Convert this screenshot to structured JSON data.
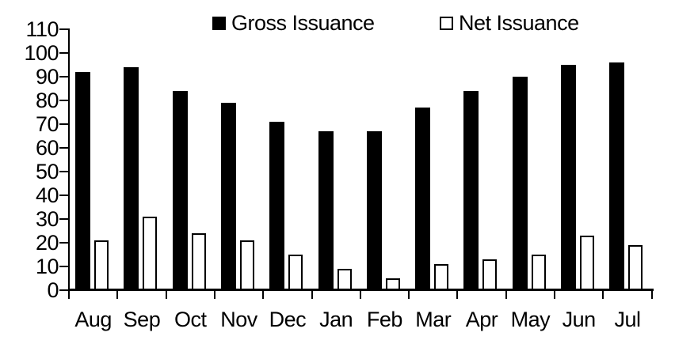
{
  "chart_data": {
    "type": "bar",
    "title": "",
    "xlabel": "",
    "ylabel": "",
    "categories": [
      "Aug",
      "Sep",
      "Oct",
      "Nov",
      "Dec",
      "Jan",
      "Feb",
      "Mar",
      "Apr",
      "May",
      "Jun",
      "Jul"
    ],
    "series": [
      {
        "name": "Gross Issuance",
        "style": "filled",
        "values": [
          92,
          94,
          84,
          79,
          71,
          67,
          67,
          77,
          84,
          90,
          95,
          96
        ]
      },
      {
        "name": "Net Issuance",
        "style": "outlined",
        "values": [
          21,
          31,
          24,
          21,
          15,
          9,
          5,
          11,
          13,
          15,
          23,
          19
        ]
      }
    ],
    "ylim": [
      0,
      110
    ],
    "yticks": [
      0,
      10,
      20,
      30,
      40,
      50,
      60,
      70,
      80,
      90,
      100,
      110
    ],
    "grid": false,
    "legend_position": "top"
  },
  "legend": {
    "items": [
      {
        "label": "Gross Issuance",
        "swatch": "filled-black-square"
      },
      {
        "label": "Net Issuance",
        "swatch": "outlined-white-square"
      }
    ]
  },
  "colors": {
    "background": "#ffffff",
    "axis": "#000000",
    "text": "#000000",
    "gross_fill": "#000000",
    "net_fill": "#ffffff",
    "net_border": "#000000"
  }
}
